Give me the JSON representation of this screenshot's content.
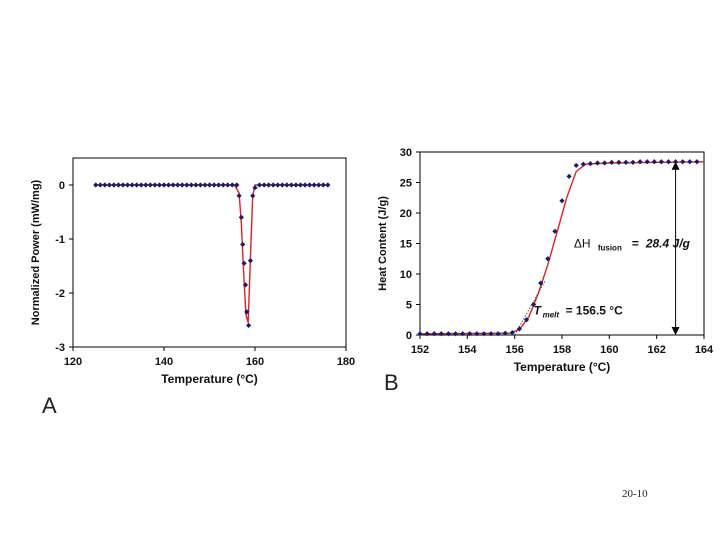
{
  "slide_number": "20-10",
  "panel_a": {
    "letter": "A"
  },
  "panel_b": {
    "letter": "B"
  },
  "colors": {
    "marker": "#1a1a6e",
    "fit_line": "#e02020",
    "frame": "#000000"
  },
  "chart_data": [
    {
      "type": "scatter",
      "xlabel": "Temperature (°C)",
      "ylabel": "Normalized Power (mW/mg)",
      "xlim": [
        120,
        180
      ],
      "ylim": [
        -3,
        0.5
      ],
      "xticks": [
        120,
        140,
        160,
        180
      ],
      "yticks": [
        0,
        -1,
        -2,
        -3
      ],
      "grid": false,
      "legend": "none",
      "series": [
        {
          "marker": "diamond",
          "x": [
            125,
            126,
            127,
            128,
            129,
            130,
            131,
            132,
            133,
            134,
            135,
            136,
            137,
            138,
            139,
            140,
            141,
            142,
            143,
            144,
            145,
            146,
            147,
            148,
            149,
            150,
            151,
            152,
            153,
            154,
            155,
            156,
            156.5,
            157,
            157.3,
            157.6,
            157.9,
            158.2,
            158.6,
            159,
            159.5,
            160,
            161,
            162,
            163,
            164,
            165,
            166,
            167,
            168,
            169,
            170,
            171,
            172,
            173,
            174,
            175,
            176
          ],
          "y": [
            0,
            0,
            0,
            0,
            0,
            0,
            0,
            0,
            0,
            0,
            0,
            0,
            0,
            0,
            0,
            0,
            0,
            0,
            0,
            0,
            0,
            0,
            0,
            0,
            0,
            0,
            0,
            0,
            0,
            0,
            0,
            0,
            -0.2,
            -0.6,
            -1.1,
            -1.45,
            -1.85,
            -2.35,
            -2.6,
            -1.4,
            -0.2,
            -0.05,
            0,
            0,
            0,
            0,
            0,
            0,
            0,
            0,
            0,
            0,
            0,
            0,
            0,
            0,
            0,
            0
          ]
        },
        {
          "line": true,
          "x": [
            125,
            155.5,
            156.5,
            157,
            157.5,
            158,
            158.5,
            159,
            159.5,
            160,
            176
          ],
          "y": [
            0,
            0,
            -0.15,
            -0.7,
            -1.6,
            -2.4,
            -2.55,
            -1.3,
            -0.2,
            0,
            0
          ]
        }
      ]
    },
    {
      "type": "scatter",
      "xlabel": "Temperature (°C)",
      "ylabel": "Heat Content (J/g)",
      "xlim": [
        152,
        164
      ],
      "ylim": [
        0,
        30
      ],
      "xticks": [
        152,
        154,
        156,
        158,
        160,
        162,
        164
      ],
      "yticks": [
        0,
        5,
        10,
        15,
        20,
        25,
        30
      ],
      "grid": false,
      "legend": "none",
      "series": [
        {
          "marker": "diamond",
          "x": [
            152,
            152.3,
            152.6,
            152.9,
            153.2,
            153.5,
            153.8,
            154.1,
            154.4,
            154.7,
            155,
            155.3,
            155.6,
            155.9,
            156.2,
            156.5,
            156.8,
            157.1,
            157.4,
            157.7,
            158,
            158.3,
            158.6,
            158.9,
            159.2,
            159.5,
            159.8,
            160.1,
            160.4,
            160.7,
            161,
            161.3,
            161.6,
            161.9,
            162.2,
            162.5,
            162.8,
            163.1,
            163.4,
            163.7
          ],
          "y": [
            0.2,
            0.2,
            0.2,
            0.2,
            0.2,
            0.2,
            0.2,
            0.2,
            0.2,
            0.2,
            0.2,
            0.2,
            0.3,
            0.4,
            1,
            2.5,
            5,
            8.5,
            12.5,
            17,
            22,
            26,
            27.8,
            28,
            28.1,
            28.2,
            28.2,
            28.3,
            28.3,
            28.3,
            28.3,
            28.4,
            28.4,
            28.4,
            28.4,
            28.4,
            28.4,
            28.4,
            28.4,
            28.4
          ]
        },
        {
          "line": true,
          "x": [
            152,
            155.8,
            156.2,
            156.6,
            157,
            157.4,
            157.8,
            158.2,
            158.6,
            159,
            160,
            164
          ],
          "y": [
            0.2,
            0.3,
            0.9,
            3,
            6.8,
            11.5,
            17,
            22.5,
            26.8,
            28,
            28.2,
            28.4
          ]
        }
      ],
      "annotations": {
        "delta_h_symbol": "ΔH",
        "delta_h_subscript": "fusion",
        "delta_h_equals": "=",
        "delta_h_value": "28.4 J/g",
        "t_melt_symbol": "T",
        "t_melt_subscript": "melt",
        "t_melt_value": "= 156.5 °C"
      }
    }
  ]
}
